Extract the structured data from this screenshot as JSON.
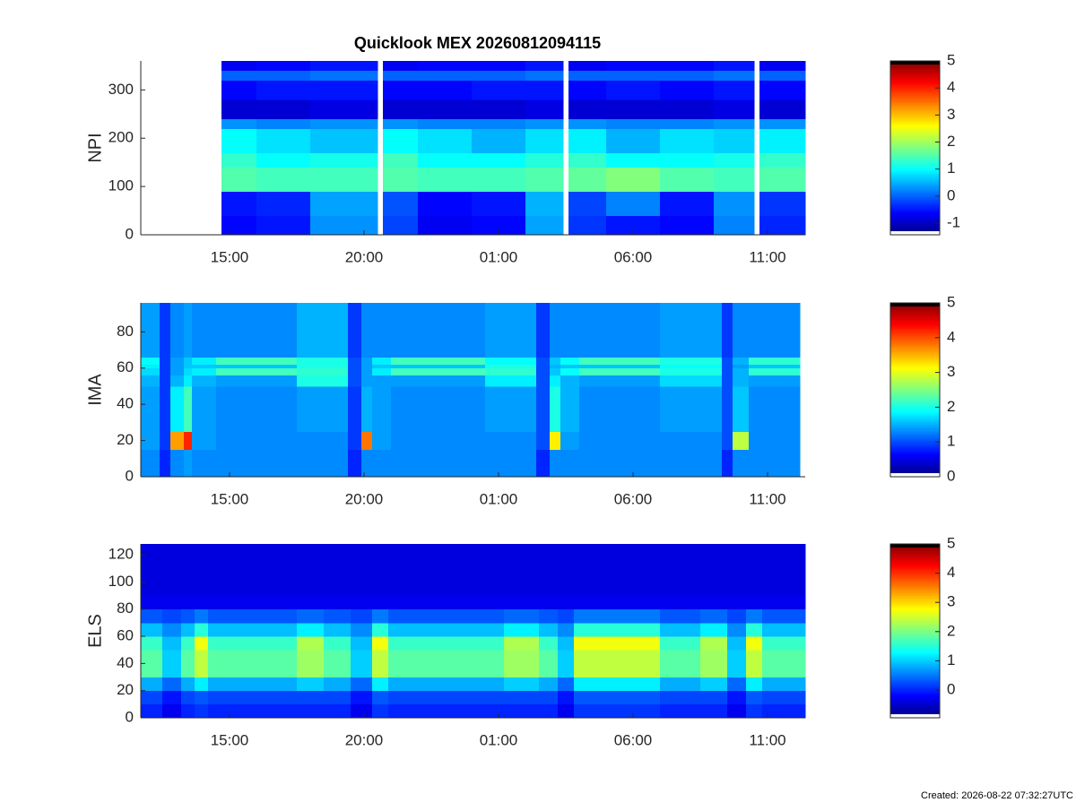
{
  "chart_data": [
    {
      "type": "heatmap",
      "title": "Quicklook MEX 20260812094115",
      "ylabel": "NPI",
      "colormap": "jet",
      "under_color": "#ffffff",
      "over_color": "#000000",
      "xlim": [
        11.7,
        36.4
      ],
      "xticks": [
        {
          "value": 15,
          "label": "15:00"
        },
        {
          "value": 20,
          "label": "20:00"
        },
        {
          "value": 25,
          "label": "01:00"
        },
        {
          "value": 30,
          "label": "06:00"
        },
        {
          "value": 35,
          "label": "11:00"
        }
      ],
      "ylim": [
        0,
        360
      ],
      "yticks": [
        0,
        100,
        200,
        300
      ],
      "clim": [
        -1.43,
        5
      ],
      "cticks": [
        -1,
        0,
        1,
        2,
        3,
        4,
        5
      ],
      "x_edges": [
        11.7,
        14.7,
        16,
        18,
        20.5,
        20.7,
        22,
        24,
        26,
        27.4,
        27.6,
        29,
        31,
        33,
        34.5,
        34.7,
        36.4
      ],
      "y_edges": [
        0,
        40,
        90,
        140,
        170,
        220,
        240,
        280,
        320,
        340,
        360
      ],
      "z": [
        [
          null,
          -0.6,
          -0.5,
          0.3,
          null,
          -0.2,
          -0.7,
          -0.6,
          0.4,
          null,
          -0.3,
          -0.5,
          -0.6,
          0.2,
          null,
          -0.4
        ],
        [
          null,
          -0.5,
          -0.4,
          0.4,
          null,
          -0.1,
          -0.6,
          -0.5,
          0.5,
          null,
          -0.2,
          0.2,
          -0.5,
          0.3,
          null,
          -0.3
        ],
        [
          null,
          1.5,
          1.4,
          1.4,
          null,
          1.5,
          1.4,
          1.4,
          1.5,
          null,
          1.6,
          1.8,
          1.5,
          1.4,
          null,
          1.5
        ],
        [
          null,
          1.3,
          1.0,
          1.1,
          null,
          1.4,
          1.0,
          1.0,
          1.2,
          null,
          1.3,
          1.0,
          1.0,
          1.1,
          null,
          1.3
        ],
        [
          null,
          1.0,
          0.8,
          0.6,
          null,
          1.0,
          0.8,
          0.5,
          0.8,
          null,
          0.9,
          0.5,
          0.8,
          0.7,
          null,
          0.9
        ],
        [
          null,
          0.3,
          0.2,
          0.3,
          null,
          0.3,
          0.2,
          0.2,
          0.3,
          null,
          0.3,
          0.2,
          0.2,
          0.3,
          null,
          0.3
        ],
        [
          null,
          -0.9,
          -0.9,
          -0.8,
          null,
          -0.9,
          -0.9,
          -0.9,
          -0.8,
          null,
          -0.9,
          -0.9,
          -0.9,
          -0.8,
          null,
          -0.9
        ],
        [
          null,
          -0.6,
          -0.5,
          -0.5,
          null,
          -0.6,
          -0.6,
          -0.5,
          -0.5,
          null,
          -0.6,
          -0.5,
          -0.6,
          -0.5,
          null,
          -0.6
        ],
        [
          null,
          0.0,
          0.0,
          0.1,
          null,
          0.0,
          0.0,
          0.0,
          0.1,
          null,
          0.0,
          0.0,
          0.0,
          0.1,
          null,
          0.0
        ],
        [
          null,
          -0.7,
          -0.6,
          -0.5,
          null,
          -0.7,
          -0.6,
          -0.6,
          -0.5,
          null,
          -0.7,
          -0.6,
          -0.6,
          -0.5,
          null,
          -0.7
        ]
      ]
    },
    {
      "type": "heatmap",
      "ylabel": "IMA",
      "colormap": "jet",
      "under_color": "#ffffff",
      "over_color": "#000000",
      "xlim": [
        11.7,
        36.4
      ],
      "xticks": [
        {
          "value": 15,
          "label": "15:00"
        },
        {
          "value": 20,
          "label": "20:00"
        },
        {
          "value": 25,
          "label": "01:00"
        },
        {
          "value": 30,
          "label": "06:00"
        },
        {
          "value": 35,
          "label": "11:00"
        }
      ],
      "ylim": [
        0,
        96
      ],
      "yticks": [
        0,
        20,
        40,
        60,
        80
      ],
      "clim": [
        0,
        5
      ],
      "cticks": [
        0,
        1,
        2,
        3,
        4,
        5
      ],
      "x_edges": [
        11.7,
        12.4,
        12.8,
        13.3,
        13.6,
        14.5,
        17.5,
        19.4,
        19.9,
        20.3,
        21,
        24.5,
        26.4,
        26.9,
        27.3,
        28,
        31,
        33.3,
        33.7,
        34.3,
        36.2
      ],
      "y_edges": [
        0,
        15,
        25,
        50,
        56,
        60,
        62,
        66,
        96
      ],
      "z": [
        [
          1.3,
          0.8,
          1.3,
          1.4,
          1.3,
          1.3,
          1.3,
          0.8,
          1.3,
          1.3,
          1.3,
          1.3,
          0.8,
          1.3,
          1.3,
          1.3,
          1.3,
          0.8,
          1.3,
          1.3
        ],
        [
          1.4,
          0.9,
          3.6,
          4.2,
          1.4,
          1.3,
          1.3,
          0.9,
          3.8,
          1.4,
          1.3,
          1.3,
          1.0,
          3.2,
          1.4,
          1.3,
          1.3,
          1.0,
          2.8,
          1.3
        ],
        [
          1.4,
          0.9,
          1.8,
          2.2,
          1.4,
          1.3,
          1.4,
          0.9,
          1.5,
          1.4,
          1.3,
          1.4,
          1.0,
          2.0,
          1.5,
          1.3,
          1.4,
          1.0,
          1.6,
          1.3
        ],
        [
          1.5,
          0.9,
          1.5,
          1.8,
          1.5,
          1.4,
          2.0,
          1.0,
          1.4,
          1.4,
          1.4,
          1.8,
          1.0,
          1.8,
          1.5,
          1.4,
          1.7,
          1.0,
          1.5,
          1.4
        ],
        [
          1.7,
          0.9,
          1.4,
          1.7,
          1.8,
          2.2,
          2.1,
          1.0,
          1.4,
          1.8,
          2.2,
          2.1,
          1.0,
          1.6,
          1.9,
          2.2,
          2.0,
          1.0,
          1.5,
          2.1
        ],
        [
          1.8,
          0.9,
          1.4,
          1.6,
          1.6,
          1.6,
          2.0,
          1.0,
          1.4,
          1.6,
          1.6,
          2.0,
          1.0,
          1.5,
          1.6,
          1.6,
          1.9,
          1.0,
          1.4,
          1.6
        ],
        [
          1.9,
          0.9,
          1.4,
          1.6,
          1.8,
          2.2,
          2.0,
          1.0,
          1.4,
          1.8,
          2.2,
          1.9,
          1.0,
          1.6,
          1.9,
          2.2,
          2.0,
          1.0,
          1.5,
          2.1
        ],
        [
          1.4,
          0.9,
          1.3,
          1.4,
          1.3,
          1.3,
          1.5,
          0.9,
          1.3,
          1.3,
          1.3,
          1.4,
          0.9,
          1.3,
          1.3,
          1.3,
          1.4,
          0.9,
          1.3,
          1.3
        ]
      ]
    },
    {
      "type": "heatmap",
      "ylabel": "ELS",
      "colormap": "jet",
      "under_color": "#ffffff",
      "over_color": "#000000",
      "xlim": [
        11.7,
        36.4
      ],
      "xticks": [
        {
          "value": 15,
          "label": "15:00"
        },
        {
          "value": 20,
          "label": "20:00"
        },
        {
          "value": 25,
          "label": "01:00"
        },
        {
          "value": 30,
          "label": "06:00"
        },
        {
          "value": 35,
          "label": "11:00"
        }
      ],
      "ylim": [
        0,
        128
      ],
      "yticks": [
        0,
        20,
        40,
        60,
        80,
        100,
        120
      ],
      "clim": [
        -0.95,
        5
      ],
      "cticks": [
        0,
        1,
        2,
        3,
        4,
        5
      ],
      "x_edges": [
        11.7,
        12.5,
        13.2,
        13.7,
        14.2,
        17.5,
        18.5,
        19.5,
        20.3,
        20.9,
        24,
        25.2,
        26.5,
        27.2,
        27.8,
        31,
        32.5,
        33.5,
        34.2,
        34.8,
        36.4
      ],
      "y_edges": [
        0,
        10,
        20,
        30,
        50,
        60,
        70,
        80,
        90,
        128
      ],
      "z": [
        [
          0.0,
          -0.3,
          0.0,
          0.1,
          0.0,
          0.0,
          0.0,
          -0.3,
          0.1,
          0.0,
          0.0,
          0.0,
          0.0,
          -0.3,
          0.1,
          0.0,
          0.0,
          -0.3,
          0.1,
          0.0
        ],
        [
          0.2,
          -0.1,
          0.2,
          0.3,
          0.2,
          0.2,
          0.2,
          -0.1,
          0.3,
          0.2,
          0.2,
          0.2,
          0.2,
          -0.1,
          0.3,
          0.2,
          0.2,
          -0.1,
          0.3,
          0.2
        ],
        [
          0.8,
          0.4,
          0.8,
          1.2,
          0.8,
          1.0,
          0.8,
          0.4,
          1.2,
          0.8,
          0.8,
          1.0,
          0.8,
          0.4,
          1.2,
          0.8,
          1.0,
          0.4,
          1.2,
          0.8
        ],
        [
          1.8,
          1.0,
          1.8,
          2.4,
          1.8,
          2.2,
          1.8,
          1.0,
          2.4,
          1.8,
          1.8,
          2.2,
          1.8,
          1.0,
          2.4,
          1.8,
          2.2,
          1.0,
          2.4,
          1.8
        ],
        [
          1.6,
          0.9,
          1.6,
          2.7,
          1.6,
          2.3,
          1.6,
          0.9,
          2.7,
          1.6,
          1.6,
          2.3,
          1.6,
          0.9,
          2.7,
          1.6,
          2.3,
          0.9,
          2.7,
          1.6
        ],
        [
          0.9,
          0.6,
          0.9,
          1.5,
          0.9,
          1.2,
          0.9,
          0.6,
          1.5,
          0.9,
          0.9,
          1.2,
          0.9,
          0.6,
          1.5,
          0.9,
          1.2,
          0.6,
          1.5,
          0.9
        ],
        [
          0.3,
          0.2,
          0.3,
          0.5,
          0.3,
          0.4,
          0.3,
          0.2,
          0.5,
          0.3,
          0.3,
          0.4,
          0.3,
          0.2,
          0.5,
          0.3,
          0.4,
          0.2,
          0.5,
          0.3
        ],
        [
          -0.3,
          -0.3,
          -0.3,
          -0.3,
          -0.3,
          -0.3,
          -0.3,
          -0.3,
          -0.3,
          -0.3,
          -0.3,
          -0.3,
          -0.3,
          -0.3,
          -0.3,
          -0.3,
          -0.3,
          -0.3,
          -0.3,
          -0.3
        ],
        [
          -0.4,
          -0.4,
          -0.4,
          -0.4,
          -0.4,
          -0.4,
          -0.4,
          -0.4,
          -0.4,
          -0.4,
          -0.4,
          -0.4,
          -0.4,
          -0.4,
          -0.4,
          -0.4,
          -0.4,
          -0.4,
          -0.4,
          -0.4
        ]
      ]
    }
  ],
  "footnote": "Created: 2026-08-22 07:32:27UTC"
}
